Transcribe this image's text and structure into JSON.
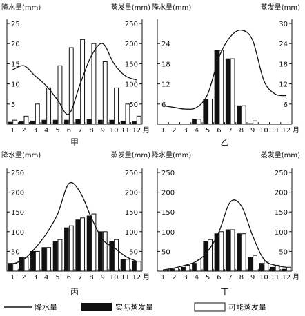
{
  "legend": {
    "precip_label": "降水量",
    "actual_label": "实际蒸发量",
    "potential_label": "可能蒸发量"
  },
  "chart_data": [
    {
      "type": "bar",
      "name": "甲",
      "left_axis_label": "降水量(mm)",
      "right_axis_label": "蒸发量(mm)",
      "x_label": "月",
      "left_ylim": [
        0,
        25
      ],
      "left_ticks": [
        5,
        10,
        15,
        20,
        25
      ],
      "right_ylim": [
        0,
        250
      ],
      "right_ticks": [
        50,
        100,
        150,
        200,
        250
      ],
      "categories": [
        "1",
        "2",
        "3",
        "4",
        "5",
        "6",
        "7",
        "8",
        "9",
        "10",
        "11",
        "12"
      ],
      "series": [
        {
          "name": "降水量",
          "kind": "line",
          "axis": "left",
          "values": [
            13.5,
            14.5,
            12,
            9.5,
            6,
            2.5,
            10,
            17,
            20,
            15,
            12,
            11
          ]
        },
        {
          "name": "实际蒸发量",
          "kind": "bar",
          "axis": "right",
          "values": [
            5,
            6,
            8,
            10,
            10,
            10,
            12,
            12,
            10,
            10,
            8,
            6
          ]
        },
        {
          "name": "可能蒸发量",
          "kind": "bar",
          "axis": "right",
          "values": [
            10,
            20,
            50,
            90,
            145,
            190,
            210,
            200,
            155,
            90,
            50,
            20
          ]
        }
      ]
    },
    {
      "type": "bar",
      "name": "乙",
      "left_axis_label": "降水量(mm)",
      "right_axis_label": "蒸发量(mm)",
      "x_label": "月",
      "left_ylim": [
        0,
        30
      ],
      "left_ticks": [
        6,
        12,
        18,
        24
      ],
      "right_ylim": [
        0,
        30
      ],
      "right_ticks": [
        6,
        12,
        18,
        24,
        30
      ],
      "categories": [
        "1",
        "2",
        "3",
        "4",
        "5",
        "6",
        "7",
        "8",
        "9",
        "10",
        "11",
        "12"
      ],
      "series": [
        {
          "name": "降水量",
          "kind": "line",
          "axis": "left",
          "values": [
            5.5,
            5,
            4.5,
            5,
            9,
            20,
            26,
            28,
            25,
            13,
            9,
            8.5
          ]
        },
        {
          "name": "实际蒸发量",
          "kind": "bar",
          "axis": "right",
          "values": [
            0,
            0,
            0,
            1.5,
            7.5,
            22,
            19.5,
            5.5,
            0.2,
            0,
            0,
            0
          ]
        },
        {
          "name": "可能蒸发量",
          "kind": "bar",
          "axis": "right",
          "values": [
            0,
            0,
            0,
            1.5,
            7.5,
            22,
            19.5,
            5.5,
            1,
            0,
            0,
            0
          ]
        }
      ]
    },
    {
      "type": "bar",
      "name": "丙",
      "left_axis_label": "降水量(mm)",
      "right_axis_label": "蒸发量(mm)",
      "x_label": "月",
      "left_ylim": [
        0,
        250
      ],
      "left_ticks": [
        50,
        100,
        150,
        200,
        250
      ],
      "right_ylim": [
        0,
        250
      ],
      "right_ticks": [
        50,
        100,
        150,
        200,
        250
      ],
      "categories": [
        "1",
        "2",
        "3",
        "4",
        "5",
        "6",
        "7",
        "8",
        "9",
        "10",
        "11",
        "12"
      ],
      "series": [
        {
          "name": "降水量",
          "kind": "line",
          "axis": "left",
          "values": [
            18,
            30,
            58,
            95,
            145,
            222,
            200,
            135,
            80,
            60,
            38,
            25
          ]
        },
        {
          "name": "实际蒸发量",
          "kind": "bar",
          "axis": "right",
          "values": [
            20,
            35,
            50,
            60,
            75,
            110,
            130,
            140,
            100,
            75,
            30,
            25
          ]
        },
        {
          "name": "可能蒸发量",
          "kind": "bar",
          "axis": "right",
          "values": [
            20,
            35,
            50,
            60,
            80,
            115,
            135,
            145,
            100,
            80,
            30,
            25
          ]
        }
      ]
    },
    {
      "type": "bar",
      "name": "丁",
      "left_axis_label": "降水量(mm)",
      "right_axis_label": "蒸发量(mm)",
      "x_label": "月",
      "left_ylim": [
        0,
        250
      ],
      "left_ticks": [
        50,
        100,
        150,
        200,
        250
      ],
      "right_ylim": [
        0,
        250
      ],
      "right_ticks": [
        50,
        100,
        150,
        200,
        250
      ],
      "categories": [
        "1",
        "2",
        "3",
        "4",
        "5",
        "6",
        "7",
        "8",
        "9",
        "10",
        "11",
        "12"
      ],
      "series": [
        {
          "name": "降水量",
          "kind": "line",
          "axis": "left",
          "values": [
            3,
            8,
            15,
            25,
            50,
            100,
            175,
            165,
            90,
            30,
            15,
            10
          ]
        },
        {
          "name": "实际蒸发量",
          "kind": "bar",
          "axis": "right",
          "values": [
            0,
            5,
            10,
            20,
            75,
            95,
            105,
            95,
            35,
            20,
            10,
            5
          ]
        },
        {
          "name": "可能蒸发量",
          "kind": "bar",
          "axis": "right",
          "values": [
            2,
            8,
            15,
            30,
            80,
            100,
            105,
            95,
            40,
            25,
            15,
            10
          ]
        }
      ]
    }
  ]
}
